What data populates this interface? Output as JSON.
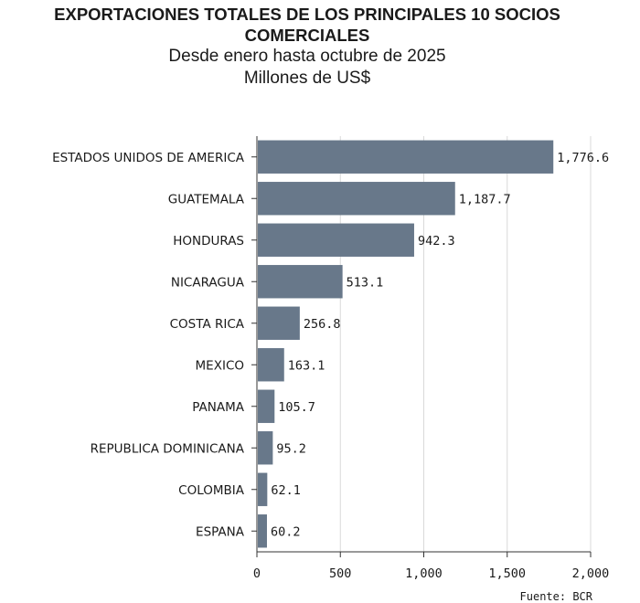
{
  "chart_data": {
    "type": "bar",
    "orientation": "horizontal",
    "title": "EXPORTACIONES TOTALES DE LOS PRINCIPALES 10 SOCIOS COMERCIALES",
    "subtitle": "Desde enero hasta octubre de 2025",
    "unit_label": "Millones de US$",
    "categories": [
      "ESTADOS UNIDOS DE AMERICA",
      "GUATEMALA",
      "HONDURAS",
      "NICARAGUA",
      "COSTA RICA",
      "MEXICO",
      "PANAMA",
      "REPUBLICA DOMINICANA",
      "COLOMBIA",
      "ESPANA"
    ],
    "values": [
      1776.6,
      1187.7,
      942.3,
      513.1,
      256.8,
      163.1,
      105.7,
      95.2,
      62.1,
      60.2
    ],
    "value_labels": [
      "1,776.6",
      "1,187.7",
      "942.3",
      "513.1",
      "256.8",
      "163.1",
      "105.7",
      "95.2",
      "62.1",
      "60.2"
    ],
    "xlim": [
      0,
      2000
    ],
    "xticks": [
      0,
      500,
      1000,
      1500,
      2000
    ],
    "xtick_labels": [
      "0",
      "500",
      "1,000",
      "1,500",
      "2,000"
    ],
    "xlabel": "",
    "ylabel": "",
    "grid": true,
    "bar_color": "#68788a",
    "grid_color": "#d9d9d9",
    "source": "Fuente: BCR"
  }
}
